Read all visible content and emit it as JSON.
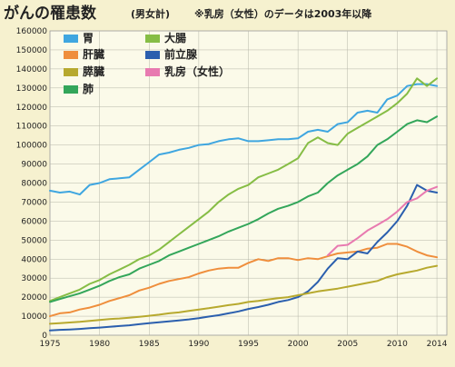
{
  "chart_data": {
    "type": "line",
    "title": "がんの罹患数",
    "subtitle": "(男女計)",
    "note": "※乳房（女性）のデータは2003年以降",
    "x_ticks": [
      1975,
      1980,
      1985,
      1990,
      1995,
      2000,
      2005,
      2010,
      2014
    ],
    "y_ticks": [
      0,
      10000,
      20000,
      30000,
      40000,
      50000,
      60000,
      70000,
      80000,
      90000,
      100000,
      110000,
      120000,
      130000,
      140000,
      150000,
      160000
    ],
    "xlim": [
      1975,
      2015
    ],
    "ylim": [
      0,
      160000
    ],
    "grid": true,
    "legend_position": "top-left",
    "series": [
      {
        "name": "胃",
        "color": "#3fa6e0",
        "x": [
          1975,
          1976,
          1977,
          1978,
          1979,
          1980,
          1981,
          1982,
          1983,
          1984,
          1985,
          1986,
          1987,
          1988,
          1989,
          1990,
          1991,
          1992,
          1993,
          1994,
          1995,
          1996,
          1997,
          1998,
          1999,
          2000,
          2001,
          2002,
          2003,
          2004,
          2005,
          2006,
          2007,
          2008,
          2009,
          2010,
          2011,
          2012,
          2013,
          2014
        ],
        "values": [
          76000,
          75000,
          75500,
          74000,
          79000,
          80000,
          82000,
          82500,
          83000,
          87000,
          91000,
          95000,
          96000,
          97500,
          98500,
          100000,
          100500,
          102000,
          103000,
          103500,
          102000,
          102000,
          102500,
          103000,
          103000,
          103500,
          107000,
          108000,
          107000,
          111000,
          112000,
          117000,
          118000,
          117000,
          124000,
          126000,
          131000,
          132000,
          132000,
          131000
        ]
      },
      {
        "name": "大腸",
        "color": "#86bd45",
        "x": [
          1975,
          1976,
          1977,
          1978,
          1979,
          1980,
          1981,
          1982,
          1983,
          1984,
          1985,
          1986,
          1987,
          1988,
          1989,
          1990,
          1991,
          1992,
          1993,
          1994,
          1995,
          1996,
          1997,
          1998,
          1999,
          2000,
          2001,
          2002,
          2003,
          2004,
          2005,
          2006,
          2007,
          2008,
          2009,
          2010,
          2011,
          2012,
          2013,
          2014
        ],
        "values": [
          18000,
          20000,
          22000,
          24000,
          27000,
          29000,
          32000,
          34500,
          37000,
          40000,
          42000,
          45000,
          49000,
          53000,
          57000,
          61000,
          65000,
          70000,
          74000,
          77000,
          79000,
          83000,
          85000,
          87000,
          90000,
          93000,
          101000,
          104000,
          101000,
          100000,
          106000,
          109000,
          112000,
          115000,
          118000,
          122000,
          127000,
          135000,
          131000,
          135000
        ]
      },
      {
        "name": "肺",
        "color": "#33a65a",
        "x": [
          1975,
          1976,
          1977,
          1978,
          1979,
          1980,
          1981,
          1982,
          1983,
          1984,
          1985,
          1986,
          1987,
          1988,
          1989,
          1990,
          1991,
          1992,
          1993,
          1994,
          1995,
          1996,
          1997,
          1998,
          1999,
          2000,
          2001,
          2002,
          2003,
          2004,
          2005,
          2006,
          2007,
          2008,
          2009,
          2010,
          2011,
          2012,
          2013,
          2014
        ],
        "values": [
          17500,
          19000,
          20500,
          22000,
          24000,
          26000,
          28500,
          30500,
          32000,
          35000,
          37000,
          39000,
          42000,
          44000,
          46000,
          48000,
          50000,
          52000,
          54500,
          56500,
          58500,
          61000,
          64000,
          66500,
          68000,
          70000,
          73000,
          75000,
          80000,
          84000,
          87000,
          90000,
          94000,
          100000,
          103000,
          107000,
          111000,
          113000,
          112000,
          115000
        ]
      },
      {
        "name": "肝臓",
        "color": "#ef8e3c",
        "x": [
          1975,
          1976,
          1977,
          1978,
          1979,
          1980,
          1981,
          1982,
          1983,
          1984,
          1985,
          1986,
          1987,
          1988,
          1989,
          1990,
          1991,
          1992,
          1993,
          1994,
          1995,
          1996,
          1997,
          1998,
          1999,
          2000,
          2001,
          2002,
          2003,
          2004,
          2005,
          2006,
          2007,
          2008,
          2009,
          2010,
          2011,
          2012,
          2013,
          2014
        ],
        "values": [
          10000,
          11500,
          12000,
          13500,
          14500,
          16000,
          18000,
          19500,
          21000,
          23500,
          25000,
          27000,
          28500,
          29500,
          30500,
          32500,
          34000,
          35000,
          35500,
          35500,
          38000,
          40000,
          39000,
          40500,
          40500,
          39500,
          40500,
          40000,
          41500,
          43000,
          43500,
          44000,
          45500,
          46000,
          48000,
          48000,
          46500,
          44000,
          42000,
          41000
        ]
      },
      {
        "name": "前立腺",
        "color": "#2b5fae",
        "x": [
          1975,
          1976,
          1977,
          1978,
          1979,
          1980,
          1981,
          1982,
          1983,
          1984,
          1985,
          1986,
          1987,
          1988,
          1989,
          1990,
          1991,
          1992,
          1993,
          1994,
          1995,
          1996,
          1997,
          1998,
          1999,
          2000,
          2001,
          2002,
          2003,
          2004,
          2005,
          2006,
          2007,
          2008,
          2009,
          2010,
          2011,
          2012,
          2013,
          2014
        ],
        "values": [
          2500,
          2800,
          3000,
          3300,
          3700,
          4000,
          4400,
          4800,
          5200,
          5800,
          6300,
          6800,
          7300,
          7800,
          8300,
          9000,
          9800,
          10500,
          11500,
          12500,
          13800,
          14800,
          16000,
          17500,
          18500,
          20000,
          23000,
          28000,
          35000,
          40500,
          40000,
          44000,
          43000,
          49000,
          54000,
          60000,
          68000,
          79000,
          76000,
          75000
        ]
      },
      {
        "name": "乳房（女性）",
        "color": "#e87ab0",
        "x": [
          2003,
          2004,
          2005,
          2006,
          2007,
          2008,
          2009,
          2010,
          2011,
          2012,
          2013,
          2014
        ],
        "values": [
          42000,
          47000,
          47500,
          51000,
          55000,
          58000,
          61000,
          65000,
          70000,
          72000,
          76000,
          78000
        ]
      },
      {
        "name": "膵臓",
        "color": "#b7a92e",
        "x": [
          1975,
          1976,
          1977,
          1978,
          1979,
          1980,
          1981,
          1982,
          1983,
          1984,
          1985,
          1986,
          1987,
          1988,
          1989,
          1990,
          1991,
          1992,
          1993,
          1994,
          1995,
          1996,
          1997,
          1998,
          1999,
          2000,
          2001,
          2002,
          2003,
          2004,
          2005,
          2006,
          2007,
          2008,
          2009,
          2010,
          2011,
          2012,
          2013,
          2014
        ],
        "values": [
          6000,
          6300,
          6700,
          7000,
          7500,
          8000,
          8500,
          8800,
          9200,
          9700,
          10200,
          10800,
          11500,
          12000,
          12800,
          13500,
          14200,
          15000,
          15800,
          16500,
          17500,
          18000,
          18800,
          19500,
          20000,
          21000,
          22000,
          23000,
          23800,
          24500,
          25500,
          26500,
          27500,
          28500,
          30500,
          32000,
          33000,
          34000,
          35500,
          36500
        ]
      }
    ],
    "legend": [
      {
        "label": "胃",
        "color": "#3fa6e0"
      },
      {
        "label": "大腸",
        "color": "#86bd45"
      },
      {
        "label": "肝臓",
        "color": "#ef8e3c"
      },
      {
        "label": "前立腺",
        "color": "#2b5fae"
      },
      {
        "label": "膵臓",
        "color": "#b7a92e"
      },
      {
        "label": "乳房（女性）",
        "color": "#e87ab0"
      },
      {
        "label": "肺",
        "color": "#33a65a"
      }
    ]
  }
}
